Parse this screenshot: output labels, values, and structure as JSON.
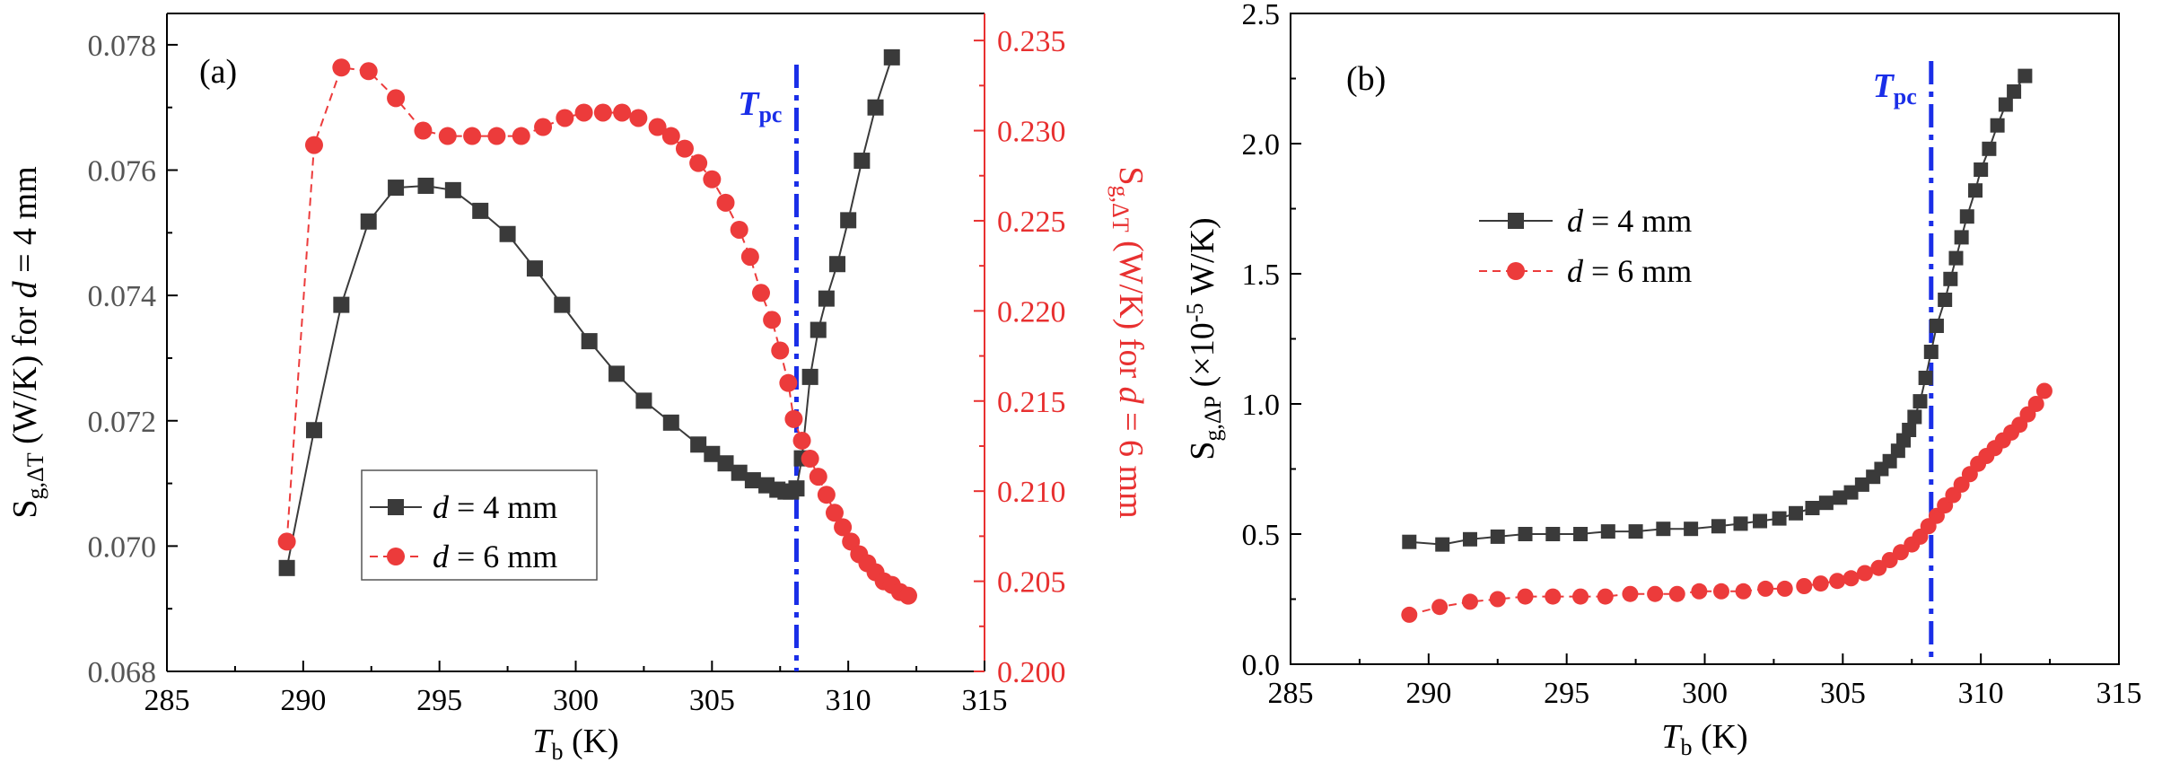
{
  "colors": {
    "series_d4": "#3a3a3a",
    "series_d6": "#ec3b3b",
    "right_axis": "#e83030",
    "tpc_line": "#1a2ee8",
    "axis": "#000000"
  },
  "chart_data": [
    {
      "type": "line",
      "panel_label": "(a)",
      "xlabel": "T",
      "xlabel_sub": "b",
      "xlabel_unit": "(K)",
      "xlim": [
        285,
        315
      ],
      "x_ticks": [
        "285",
        "290",
        "295",
        "300",
        "305",
        "310",
        "315"
      ],
      "ylabel_left": {
        "main": "S",
        "sub": "g,ΔT",
        "rest_pre": " (W/K) for ",
        "var": "d",
        "rest_post": " = 4 mm"
      },
      "ylim_left": [
        0.068,
        0.0785
      ],
      "y_ticks_left": [
        "0.068",
        "0.070",
        "0.072",
        "0.074",
        "0.076",
        "0.078"
      ],
      "ylabel_right": {
        "main": "S",
        "sub": "g,ΔT",
        "rest_pre": " (W/K) for ",
        "var": "d",
        "rest_post": " = 6 mm"
      },
      "ylim_right": [
        0.2,
        0.2365
      ],
      "y_ticks_right": [
        "0.200",
        "0.205",
        "0.210",
        "0.215",
        "0.220",
        "0.225",
        "0.230",
        "0.235"
      ],
      "annotation": {
        "main": "T",
        "sub": "pc",
        "x": 308.1
      },
      "legend": {
        "placement": "lower-center",
        "entries": [
          {
            "var": "d",
            "text": " = 4 mm"
          },
          {
            "var": "d",
            "text": " = 6 mm"
          }
        ]
      },
      "series": [
        {
          "name": "d = 4 mm",
          "axis": "left",
          "marker": "square",
          "line": "solid",
          "x": [
            289.4,
            290.4,
            291.4,
            292.4,
            293.4,
            294.5,
            295.5,
            296.5,
            297.5,
            298.5,
            299.5,
            300.5,
            301.5,
            302.5,
            303.5,
            304.5,
            305.0,
            305.5,
            306.0,
            306.5,
            307.0,
            307.4,
            307.7,
            307.9,
            308.1,
            308.3,
            308.6,
            308.9,
            309.2,
            309.6,
            310.0,
            310.5,
            311.0,
            311.6
          ],
          "values": [
            0.06965,
            0.07185,
            0.07385,
            0.07518,
            0.07572,
            0.07575,
            0.07568,
            0.07535,
            0.07498,
            0.07443,
            0.07385,
            0.07327,
            0.07275,
            0.07232,
            0.07197,
            0.07162,
            0.07147,
            0.07132,
            0.07117,
            0.07105,
            0.07097,
            0.0709,
            0.07087,
            0.07087,
            0.07092,
            0.0714,
            0.0727,
            0.07345,
            0.07395,
            0.0745,
            0.0752,
            0.07615,
            0.077,
            0.0778
          ]
        },
        {
          "name": "d = 6 mm",
          "axis": "right",
          "marker": "circle",
          "line": "dashed",
          "x": [
            289.4,
            290.4,
            291.4,
            292.4,
            293.4,
            294.4,
            295.3,
            296.2,
            297.1,
            298.0,
            298.8,
            299.6,
            300.3,
            301.0,
            301.7,
            302.3,
            303.0,
            303.5,
            304.0,
            304.5,
            305.0,
            305.5,
            306.0,
            306.4,
            306.8,
            307.2,
            307.5,
            307.8,
            308.0,
            308.3,
            308.6,
            308.9,
            309.2,
            309.5,
            309.8,
            310.1,
            310.4,
            310.7,
            311.0,
            311.3,
            311.6,
            311.9,
            312.2
          ],
          "values": [
            0.2072,
            0.2292,
            0.2335,
            0.2333,
            0.2318,
            0.23,
            0.2297,
            0.2297,
            0.2297,
            0.2297,
            0.2302,
            0.2307,
            0.231,
            0.231,
            0.231,
            0.2307,
            0.2302,
            0.2297,
            0.229,
            0.2282,
            0.2273,
            0.226,
            0.2245,
            0.223,
            0.221,
            0.2195,
            0.2178,
            0.216,
            0.214,
            0.2128,
            0.2118,
            0.2108,
            0.2098,
            0.2088,
            0.208,
            0.2072,
            0.2065,
            0.206,
            0.2055,
            0.205,
            0.2048,
            0.2044,
            0.2042
          ]
        }
      ]
    },
    {
      "type": "line",
      "panel_label": "(b)",
      "xlabel": "T",
      "xlabel_sub": "b",
      "xlabel_unit": "(K)",
      "xlim": [
        285,
        315
      ],
      "x_ticks": [
        "285",
        "290",
        "295",
        "300",
        "305",
        "310",
        "315"
      ],
      "ylabel": {
        "main": "S",
        "sub": "g,ΔP",
        "rest": " (×10",
        "sup": "-5",
        "rest2": " W/K)"
      },
      "ylim": [
        0.0,
        2.5
      ],
      "y_ticks": [
        "0.0",
        "0.5",
        "1.0",
        "1.5",
        "2.0",
        "2.5"
      ],
      "annotation": {
        "main": "T",
        "sub": "pc",
        "x": 308.2
      },
      "legend": {
        "placement": "upper-left",
        "entries": [
          {
            "var": "d",
            "text": " = 4 mm"
          },
          {
            "var": "d",
            "text": " = 6 mm"
          }
        ]
      },
      "series": [
        {
          "name": "d = 4 mm",
          "marker": "square",
          "line": "solid",
          "x": [
            289.3,
            290.5,
            291.5,
            292.5,
            293.5,
            294.5,
            295.5,
            296.5,
            297.5,
            298.5,
            299.5,
            300.5,
            301.3,
            302.0,
            302.7,
            303.3,
            303.9,
            304.4,
            304.9,
            305.3,
            305.7,
            306.1,
            306.4,
            306.7,
            307.0,
            307.2,
            307.4,
            307.6,
            307.8,
            308.0,
            308.2,
            308.4,
            308.7,
            308.9,
            309.1,
            309.3,
            309.5,
            309.8,
            310.0,
            310.3,
            310.6,
            310.9,
            311.2,
            311.6
          ],
          "values": [
            0.47,
            0.46,
            0.48,
            0.49,
            0.5,
            0.5,
            0.5,
            0.51,
            0.51,
            0.52,
            0.52,
            0.53,
            0.54,
            0.55,
            0.56,
            0.58,
            0.6,
            0.62,
            0.64,
            0.66,
            0.69,
            0.72,
            0.75,
            0.78,
            0.82,
            0.86,
            0.9,
            0.95,
            1.01,
            1.1,
            1.2,
            1.3,
            1.4,
            1.48,
            1.56,
            1.64,
            1.72,
            1.82,
            1.9,
            1.98,
            2.07,
            2.15,
            2.2,
            2.26
          ]
        },
        {
          "name": "d = 6 mm",
          "marker": "circle",
          "line": "dashed",
          "x": [
            289.3,
            290.4,
            291.5,
            292.5,
            293.5,
            294.5,
            295.5,
            296.4,
            297.3,
            298.2,
            299.0,
            299.8,
            300.6,
            301.4,
            302.2,
            302.9,
            303.6,
            304.2,
            304.8,
            305.3,
            305.8,
            306.3,
            306.7,
            307.1,
            307.5,
            307.8,
            308.1,
            308.4,
            308.7,
            309.0,
            309.3,
            309.6,
            309.9,
            310.2,
            310.5,
            310.8,
            311.1,
            311.4,
            311.7,
            312.0,
            312.3
          ],
          "values": [
            0.19,
            0.22,
            0.24,
            0.25,
            0.26,
            0.26,
            0.26,
            0.26,
            0.27,
            0.27,
            0.27,
            0.28,
            0.28,
            0.28,
            0.29,
            0.29,
            0.3,
            0.31,
            0.32,
            0.33,
            0.35,
            0.37,
            0.4,
            0.43,
            0.46,
            0.49,
            0.53,
            0.57,
            0.61,
            0.65,
            0.69,
            0.73,
            0.77,
            0.8,
            0.83,
            0.86,
            0.89,
            0.92,
            0.96,
            1.0,
            1.05
          ]
        }
      ]
    }
  ]
}
